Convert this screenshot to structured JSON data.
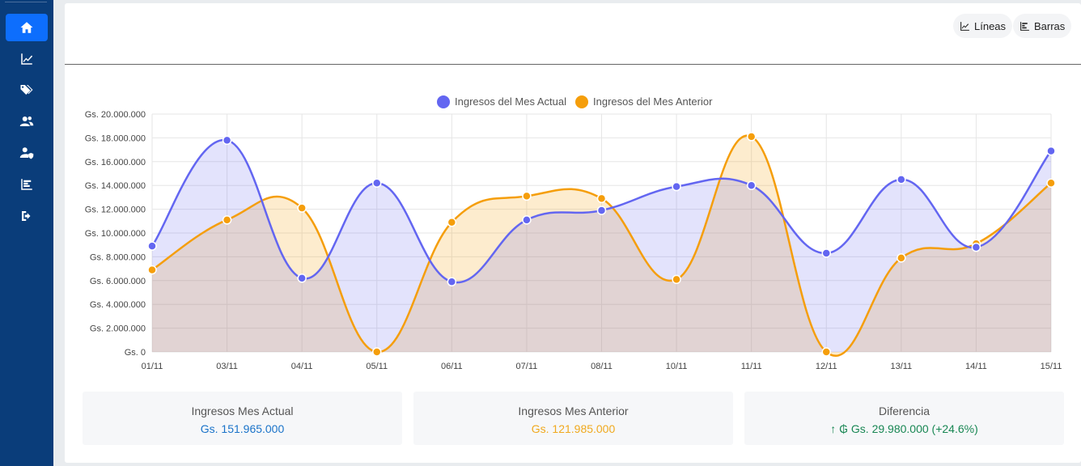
{
  "sidebar": {
    "items": [
      {
        "icon": "home-icon",
        "active": true
      },
      {
        "icon": "line-chart-icon",
        "active": false
      },
      {
        "icon": "tags-icon",
        "active": false
      },
      {
        "icon": "users-icon",
        "active": false
      },
      {
        "icon": "user-shield-icon",
        "active": false
      },
      {
        "icon": "bar-chart-icon",
        "active": false
      },
      {
        "icon": "logout-icon",
        "active": false
      }
    ]
  },
  "toolbar": {
    "lines_label": "Líneas",
    "bars_label": "Barras"
  },
  "chart_data": {
    "type": "line",
    "categories": [
      "01/11",
      "03/11",
      "04/11",
      "05/11",
      "06/11",
      "07/11",
      "08/11",
      "10/11",
      "11/11",
      "12/11",
      "13/11",
      "14/11",
      "15/11"
    ],
    "series": [
      {
        "name": "Ingresos del Mes Actual",
        "color": "#6366f1",
        "values": [
          8900000,
          17800000,
          6200000,
          14200000,
          5900000,
          11100000,
          11900000,
          13900000,
          14000000,
          8300000,
          14500000,
          8800000,
          16900000
        ]
      },
      {
        "name": "Ingresos del Mes Anterior",
        "color": "#f59e0b",
        "values": [
          6900000,
          11100000,
          12100000,
          0,
          10900000,
          13100000,
          12900000,
          6100000,
          18100000,
          0,
          7900000,
          9100000,
          14200000
        ]
      }
    ],
    "ylim": [
      0,
      20000000
    ],
    "yticks": [
      "Gs. 20.000.000",
      "Gs. 18.000.000",
      "Gs. 16.000.000",
      "Gs. 14.000.000",
      "Gs. 12.000.000",
      "Gs. 10.000.000",
      "Gs. 8.000.000",
      "Gs. 6.000.000",
      "Gs. 4.000.000",
      "Gs. 2.000.000",
      "Gs. 0"
    ],
    "grid": true,
    "legend_position": "top-center"
  },
  "stats": {
    "current": {
      "label": "Ingresos Mes Actual",
      "value": "Gs. 151.965.000",
      "color": "#1a73c9"
    },
    "previous": {
      "label": "Ingresos Mes Anterior",
      "value": "Gs. 121.985.000",
      "color": "#f0a91e"
    },
    "difference": {
      "label": "Diferencia",
      "value": "↑ ₲ Gs. 29.980.000 (+24.6%)",
      "color": "#198754"
    }
  }
}
